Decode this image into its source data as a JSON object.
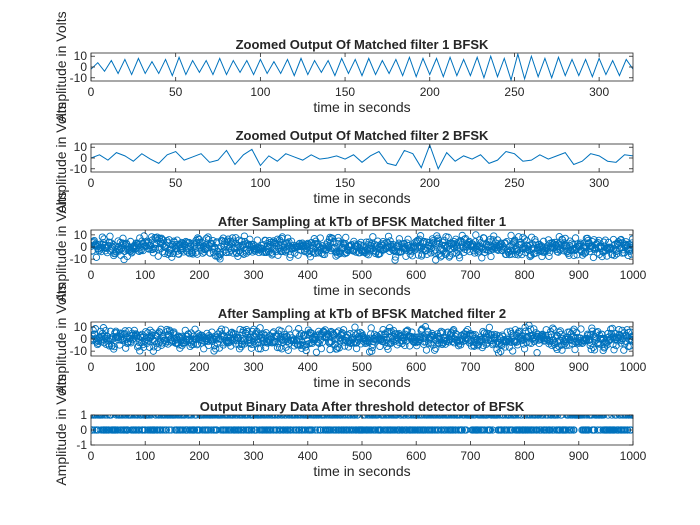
{
  "figure": {
    "background": "#ffffff",
    "axes_color": "#262626",
    "line_color": "#0072BD"
  },
  "chart_data": [
    {
      "type": "line",
      "title": "Zoomed Output Of Matched filter 1 BFSK",
      "xlabel": "time in seconds",
      "ylabel": "Amplitude in Volts",
      "xlim": [
        0,
        320
      ],
      "ylim": [
        -13,
        13
      ],
      "xticks": [
        0,
        50,
        100,
        150,
        200,
        250,
        300
      ],
      "yticks": [
        10,
        0,
        -10
      ],
      "grid": false,
      "series": [
        {
          "x": [
            0,
            4,
            8,
            12,
            16,
            20,
            24,
            28,
            32,
            36,
            40,
            44,
            48,
            52,
            56,
            60,
            64,
            68,
            72,
            76,
            80,
            84,
            88,
            92,
            96,
            100,
            104,
            108,
            112,
            116,
            120,
            124,
            128,
            132,
            136,
            140,
            144,
            148,
            152,
            156,
            160,
            164,
            168,
            172,
            176,
            180,
            184,
            188,
            192,
            196,
            200,
            204,
            208,
            212,
            216,
            220,
            224,
            228,
            232,
            236,
            240,
            244,
            248,
            252,
            256,
            260,
            264,
            268,
            272,
            276,
            280,
            284,
            288,
            292,
            296,
            300,
            304,
            308,
            312,
            316,
            320
          ],
          "y": [
            -2,
            4,
            -4,
            6,
            -6,
            7,
            -7,
            8,
            -6,
            5,
            -6,
            7,
            -8,
            9,
            -7,
            6,
            -5,
            6,
            -7,
            8,
            -7,
            6,
            -5,
            6,
            -7,
            7,
            -6,
            5,
            -6,
            7,
            -8,
            8,
            -7,
            6,
            -5,
            6,
            -8,
            8,
            -6,
            7,
            -8,
            8,
            -7,
            6,
            -6,
            7,
            -8,
            9,
            -9,
            8,
            -7,
            8,
            -9,
            9,
            -8,
            7,
            -8,
            9,
            -10,
            10,
            -9,
            8,
            -12,
            12,
            -11,
            10,
            -9,
            8,
            -10,
            9,
            -8,
            7,
            -8,
            7,
            -9,
            8,
            -7,
            6,
            -8,
            7,
            -2
          ]
        }
      ]
    },
    {
      "type": "line",
      "title": "Zoomed Output Of Matched filter 2 BFSK",
      "xlabel": "time in seconds",
      "ylabel": "Amplitude in Volts",
      "xlim": [
        0,
        320
      ],
      "ylim": [
        -13,
        13
      ],
      "xticks": [
        0,
        50,
        100,
        150,
        200,
        250,
        300
      ],
      "yticks": [
        10,
        0,
        -10
      ],
      "grid": false,
      "series": [
        {
          "x": [
            0,
            5,
            10,
            15,
            20,
            25,
            30,
            35,
            40,
            45,
            50,
            55,
            60,
            65,
            70,
            75,
            80,
            85,
            90,
            95,
            100,
            105,
            110,
            115,
            120,
            125,
            130,
            135,
            140,
            145,
            150,
            155,
            160,
            165,
            170,
            175,
            180,
            185,
            190,
            195,
            200,
            205,
            210,
            215,
            220,
            225,
            230,
            235,
            240,
            245,
            250,
            255,
            260,
            265,
            270,
            275,
            280,
            285,
            290,
            295,
            300,
            305,
            310,
            315,
            320
          ],
          "y": [
            0,
            3,
            -2,
            5,
            2,
            -3,
            4,
            -1,
            -5,
            3,
            6,
            -2,
            1,
            4,
            -4,
            -2,
            7,
            -6,
            3,
            8,
            -7,
            2,
            -3,
            4,
            1,
            -2,
            3,
            -1,
            0,
            2,
            -1,
            3,
            -4,
            2,
            6,
            -5,
            -7,
            7,
            4,
            -9,
            12,
            -10,
            5,
            -3,
            2,
            -1,
            3,
            -5,
            -2,
            6,
            4,
            -3,
            -2,
            3,
            -1,
            2,
            5,
            -6,
            -3,
            4,
            2,
            -3,
            -4,
            3,
            2
          ]
        }
      ]
    },
    {
      "type": "scatter",
      "title": "After Sampling at kTb of BFSK Matched filter 1",
      "xlabel": "time in seconds",
      "ylabel": "Amplitude in Volts",
      "xlim": [
        0,
        1000
      ],
      "ylim": [
        -14,
        14
      ],
      "xticks": [
        0,
        100,
        200,
        300,
        400,
        500,
        600,
        700,
        800,
        900,
        1000
      ],
      "yticks": [
        10,
        0,
        -10
      ],
      "grid": false,
      "samples": 1000,
      "amplitude_range": [
        -12,
        12
      ]
    },
    {
      "type": "scatter",
      "title": "After Sampling at kTb of BFSK Matched filter 2",
      "xlabel": "time in seconds",
      "ylabel": "Amplitude in Volts",
      "xlim": [
        0,
        1000
      ],
      "ylim": [
        -14,
        14
      ],
      "xticks": [
        0,
        100,
        200,
        300,
        400,
        500,
        600,
        700,
        800,
        900,
        1000
      ],
      "yticks": [
        10,
        0,
        -10
      ],
      "grid": false,
      "samples": 1000,
      "amplitude_range": [
        -12,
        12
      ]
    },
    {
      "type": "scatter",
      "title": "Output Binary Data After threshold detector of BFSK",
      "xlabel": "time in seconds",
      "ylabel": "Amplitude in Volts",
      "xlim": [
        0,
        1000
      ],
      "ylim": [
        -1,
        1
      ],
      "xticks": [
        0,
        100,
        200,
        300,
        400,
        500,
        600,
        700,
        800,
        900,
        1000
      ],
      "yticks": [
        1,
        0,
        -1
      ],
      "grid": false,
      "samples": 1000,
      "levels": [
        1,
        0
      ]
    }
  ]
}
